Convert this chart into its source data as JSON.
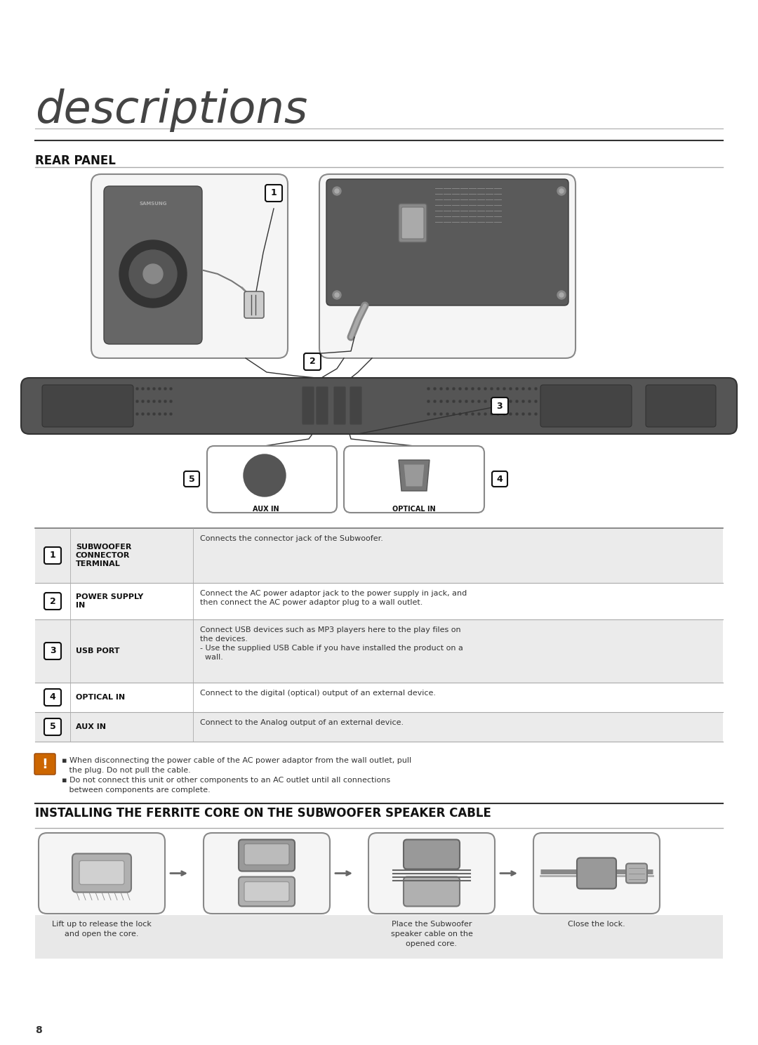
{
  "bg_color": "#ffffff",
  "title_text": "descriptions",
  "section1_title": "REAR PANEL",
  "section2_title": "INSTALLING THE FERRITE CORE ON THE SUBWOOFER SPEAKER CABLE",
  "table_rows": [
    {
      "num": "1",
      "label": "SUBWOOFER\nCONNECTOR\nTERMINAL",
      "desc": "Connects the connector jack of the Subwoofer.",
      "bg": "#ebebeb"
    },
    {
      "num": "2",
      "label": "POWER SUPPLY\nIN",
      "desc": "Connect the AC power adaptor jack to the power supply in jack, and\nthen connect the AC power adaptor plug to a wall outlet.",
      "bg": "#ffffff"
    },
    {
      "num": "3",
      "label": "USB PORT",
      "desc": "Connect USB devices such as MP3 players here to the play files on\nthe devices.\n- Use the supplied USB Cable if you have installed the product on a\n  wall.",
      "bg": "#ebebeb"
    },
    {
      "num": "4",
      "label": "OPTICAL IN",
      "desc": "Connect to the digital (optical) output of an external device.",
      "bg": "#ffffff"
    },
    {
      "num": "5",
      "label": "AUX IN",
      "desc": "Connect to the Analog output of an external device.",
      "bg": "#ebebeb"
    }
  ],
  "caution_lines": [
    "▪ When disconnecting the power cable of the AC power adaptor from the wall outlet, pull",
    "   the plug. Do not pull the cable.",
    "▪ Do not connect this unit or other components to an AC outlet until all connections",
    "   between components are complete."
  ],
  "ferrite_captions": [
    "Lift up to release the lock\nand open the core.",
    "",
    "Place the Subwoofer\nspeaker cable on the\nopened core.",
    "Close the lock."
  ],
  "page_num": "8",
  "lmargin": 50,
  "rmargin": 1030
}
